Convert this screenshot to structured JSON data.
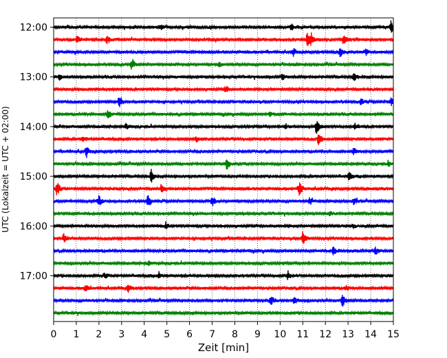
{
  "chart_data": {
    "type": "line",
    "xlabel": "Zeit  [min]",
    "ylabel": "UTC (Lokalzeit = UTC + 02:00)",
    "xlim": [
      0,
      15
    ],
    "x_ticks": [
      "0",
      "1",
      "2",
      "3",
      "4",
      "5",
      "6",
      "7",
      "8",
      "9",
      "10",
      "11",
      "12",
      "13",
      "14",
      "15"
    ],
    "y_ticks": [
      "12:00",
      "13:00",
      "14:00",
      "15:00",
      "16:00",
      "17:00"
    ],
    "grid": "vertical dotted",
    "line_colors": [
      "#000000",
      "#ff0000",
      "#0000ff",
      "#008000"
    ],
    "series": [
      {
        "start": "12:00",
        "events": [
          [
            4.7,
            0.4
          ],
          [
            10.5,
            0.5
          ],
          [
            14.9,
            0.9
          ]
        ]
      },
      {
        "start": "12:15",
        "events": [
          [
            1.05,
            0.7
          ],
          [
            2.35,
            0.5
          ],
          [
            11.2,
            1.0
          ],
          [
            11.35,
            0.8
          ],
          [
            12.8,
            0.7
          ]
        ]
      },
      {
        "start": "12:30",
        "events": [
          [
            10.6,
            0.5
          ],
          [
            12.65,
            0.6
          ],
          [
            13.8,
            0.4
          ]
        ]
      },
      {
        "start": "12:45",
        "events": [
          [
            3.45,
            0.8
          ],
          [
            7.3,
            0.35
          ]
        ]
      },
      {
        "start": "13:00",
        "events": [
          [
            0.25,
            0.4
          ],
          [
            10.1,
            0.5
          ],
          [
            13.25,
            0.6
          ]
        ]
      },
      {
        "start": "13:15",
        "events": [
          [
            7.6,
            0.35
          ]
        ]
      },
      {
        "start": "13:30",
        "events": [
          [
            2.9,
            0.9
          ],
          [
            13.55,
            0.45
          ],
          [
            14.9,
            0.5
          ]
        ]
      },
      {
        "start": "13:45",
        "events": [
          [
            2.4,
            0.6
          ],
          [
            9.55,
            0.35
          ]
        ]
      },
      {
        "start": "14:00",
        "events": [
          [
            3.2,
            0.4
          ],
          [
            10.25,
            0.35
          ],
          [
            11.6,
            1.0
          ],
          [
            13.3,
            0.45
          ]
        ]
      },
      {
        "start": "14:15",
        "events": [
          [
            1.3,
            0.3
          ],
          [
            6.3,
            0.4
          ],
          [
            11.7,
            1.0
          ]
        ]
      },
      {
        "start": "14:30",
        "events": [
          [
            1.45,
            0.7
          ],
          [
            13.25,
            0.5
          ]
        ]
      },
      {
        "start": "14:45",
        "events": [
          [
            7.65,
            0.9
          ],
          [
            14.8,
            0.3
          ]
        ]
      },
      {
        "start": "15:00",
        "events": [
          [
            4.3,
            0.9
          ],
          [
            13.05,
            0.6
          ]
        ]
      },
      {
        "start": "15:15",
        "events": [
          [
            0.15,
            1.0
          ],
          [
            4.75,
            0.6
          ],
          [
            10.85,
            1.0
          ]
        ]
      },
      {
        "start": "15:30",
        "events": [
          [
            2.0,
            0.7
          ],
          [
            4.15,
            0.9
          ],
          [
            7.0,
            0.8
          ],
          [
            11.3,
            0.5
          ],
          [
            13.25,
            0.5
          ]
        ]
      },
      {
        "start": "15:45",
        "events": [
          [
            12.2,
            0.3
          ]
        ]
      },
      {
        "start": "16:00",
        "events": [
          [
            4.95,
            0.4
          ],
          [
            13.2,
            0.35
          ]
        ]
      },
      {
        "start": "16:15",
        "events": [
          [
            0.45,
            0.6
          ],
          [
            11.0,
            0.9
          ]
        ]
      },
      {
        "start": "16:30",
        "events": [
          [
            12.35,
            0.6
          ],
          [
            14.2,
            0.5
          ]
        ]
      },
      {
        "start": "16:45",
        "events": [
          [
            4.2,
            0.3
          ]
        ]
      },
      {
        "start": "17:00",
        "events": [
          [
            2.25,
            0.4
          ],
          [
            4.65,
            0.5
          ],
          [
            10.35,
            0.6
          ]
        ]
      },
      {
        "start": "17:15",
        "events": [
          [
            1.4,
            0.6
          ],
          [
            3.3,
            0.6
          ],
          [
            12.9,
            0.4
          ]
        ]
      },
      {
        "start": "17:30",
        "events": [
          [
            9.6,
            0.6
          ],
          [
            10.6,
            0.5
          ],
          [
            12.75,
            0.9
          ]
        ]
      },
      {
        "start": "17:45",
        "events": []
      }
    ]
  }
}
